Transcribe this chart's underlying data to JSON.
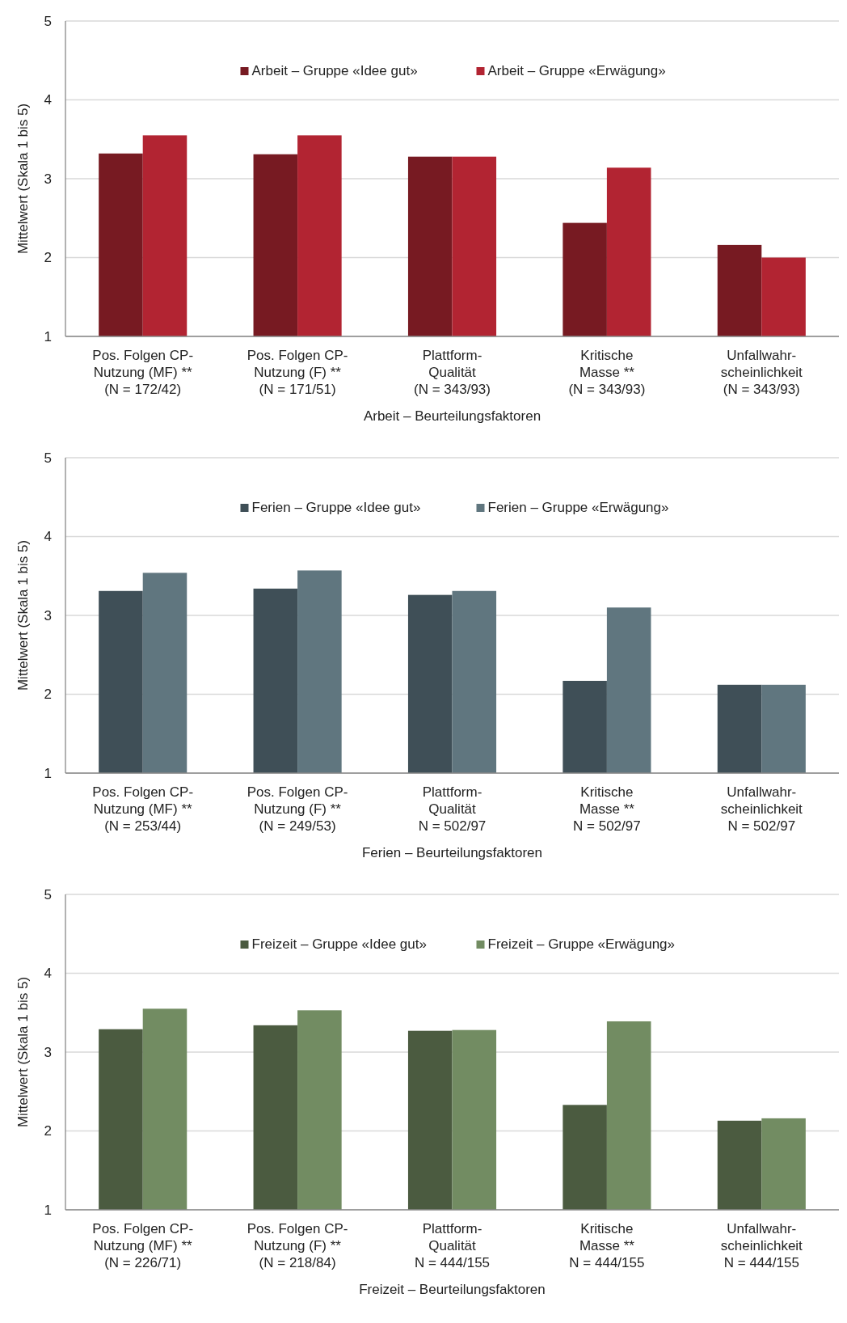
{
  "chart_data": [
    {
      "type": "bar",
      "xlabel": "Arbeit – Beurteilungsfaktoren",
      "ylabel": "Mittelwert (Skala 1 bis 5)",
      "categories": [
        "Pos. Folgen CP-\nNutzung (MF) **\n(N = 172/42)",
        "Pos. Folgen CP-\nNutzung (F) **\n(N = 171/51)",
        "Plattform-\nQualität\n(N = 343/93)",
        "Kritische\nMasse **\n(N = 343/93)",
        "Unfallwahr-\nscheinlichkeit\n(N = 343/93)"
      ],
      "series": [
        {
          "name": "Arbeit – Gruppe «Idee gut»",
          "color": "#771a22",
          "values": [
            3.32,
            3.31,
            3.28,
            2.44,
            2.16
          ]
        },
        {
          "name": "Arbeit – Gruppe «Erwägung»",
          "color": "#b22432",
          "values": [
            3.55,
            3.55,
            3.28,
            3.14,
            2.0
          ]
        }
      ],
      "ylim": [
        1,
        5
      ],
      "yticks": [
        1,
        2,
        3,
        4,
        5
      ],
      "grid": "y",
      "legend": "top"
    },
    {
      "type": "bar",
      "xlabel": "Ferien – Beurteilungsfaktoren",
      "ylabel": "Mittelwert (Skala 1 bis 5)",
      "categories": [
        "Pos. Folgen CP-\nNutzung (MF) **\n(N = 253/44)",
        "Pos. Folgen CP-\nNutzung (F) **\n(N = 249/53)",
        "Plattform-\nQualität\nN = 502/97",
        "Kritische\nMasse **\nN = 502/97",
        "Unfallwahr-\nscheinlichkeit\nN = 502/97"
      ],
      "series": [
        {
          "name": "Ferien – Gruppe «Idee gut»",
          "color": "#3f4f57",
          "values": [
            3.31,
            3.34,
            3.26,
            2.17,
            2.12
          ]
        },
        {
          "name": "Ferien – Gruppe «Erwägung»",
          "color": "#60767f",
          "values": [
            3.54,
            3.57,
            3.31,
            3.1,
            2.12
          ]
        }
      ],
      "ylim": [
        1,
        5
      ],
      "yticks": [
        1,
        2,
        3,
        4,
        5
      ],
      "grid": "y",
      "legend": "top"
    },
    {
      "type": "bar",
      "xlabel": "Freizeit – Beurteilungsfaktoren",
      "ylabel": "Mittelwert (Skala 1 bis 5)",
      "categories": [
        "Pos. Folgen CP-\nNutzung (MF) **\n(N = 226/71)",
        "Pos. Folgen CP-\nNutzung (F) **\n(N = 218/84)",
        "Plattform-\nQualität\nN = 444/155",
        "Kritische\nMasse **\nN = 444/155",
        "Unfallwahr-\nscheinlichkeit\nN = 444/155"
      ],
      "series": [
        {
          "name": "Freizeit – Gruppe «Idee gut»",
          "color": "#4b5b40",
          "values": [
            3.29,
            3.34,
            3.27,
            2.33,
            2.13
          ]
        },
        {
          "name": "Freizeit – Gruppe «Erwägung»",
          "color": "#728c62",
          "values": [
            3.55,
            3.53,
            3.28,
            3.39,
            2.16
          ]
        }
      ],
      "ylim": [
        1,
        5
      ],
      "yticks": [
        1,
        2,
        3,
        4,
        5
      ],
      "grid": "y",
      "legend": "top"
    }
  ]
}
